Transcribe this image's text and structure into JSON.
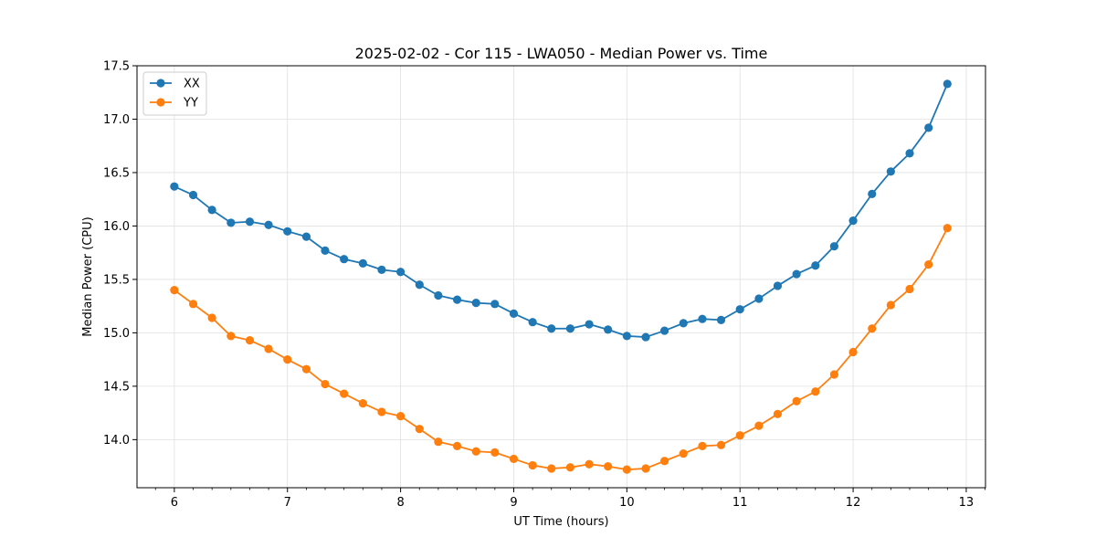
{
  "chart_data": {
    "type": "line",
    "title": "2025-02-02 - Cor 115 - LWA050 - Median Power vs. Time",
    "xlabel": "UT Time (hours)",
    "ylabel": "Median Power (CPU)",
    "xlim": [
      5.67,
      13.17
    ],
    "ylim": [
      13.55,
      17.5
    ],
    "grid": true,
    "legend_position": "top-left",
    "xticks": [
      6,
      7,
      8,
      9,
      10,
      11,
      12,
      13
    ],
    "xtick_labels": [
      "6",
      "7",
      "8",
      "9",
      "10",
      "11",
      "12",
      "13"
    ],
    "yticks": [
      14.0,
      14.5,
      15.0,
      15.5,
      16.0,
      16.5,
      17.0,
      17.5
    ],
    "ytick_labels": [
      "14.0",
      "14.5",
      "15.0",
      "15.5",
      "16.0",
      "16.5",
      "17.0",
      "17.5"
    ],
    "x": [
      6.0,
      6.167,
      6.333,
      6.5,
      6.667,
      6.833,
      7.0,
      7.167,
      7.333,
      7.5,
      7.667,
      7.833,
      8.0,
      8.167,
      8.333,
      8.5,
      8.667,
      8.833,
      9.0,
      9.167,
      9.333,
      9.5,
      9.667,
      9.833,
      10.0,
      10.167,
      10.333,
      10.5,
      10.667,
      10.833,
      11.0,
      11.167,
      11.333,
      11.5,
      11.667,
      11.833,
      12.0,
      12.167,
      12.333,
      12.5,
      12.667,
      12.833
    ],
    "series": [
      {
        "name": "XX",
        "color": "#1f77b4",
        "values": [
          16.37,
          16.29,
          16.15,
          16.03,
          16.04,
          16.01,
          15.95,
          15.9,
          15.77,
          15.69,
          15.65,
          15.59,
          15.57,
          15.45,
          15.35,
          15.31,
          15.28,
          15.27,
          15.18,
          15.1,
          15.04,
          15.04,
          15.08,
          15.03,
          14.97,
          14.96,
          15.02,
          15.09,
          15.13,
          15.12,
          15.22,
          15.32,
          15.44,
          15.55,
          15.63,
          15.81,
          16.05,
          16.3,
          16.51,
          16.68,
          16.92,
          17.33
        ]
      },
      {
        "name": "YY",
        "color": "#ff7f0e",
        "values": [
          15.4,
          15.27,
          15.14,
          14.97,
          14.93,
          14.85,
          14.75,
          14.66,
          14.52,
          14.43,
          14.34,
          14.26,
          14.22,
          14.1,
          13.98,
          13.94,
          13.89,
          13.88,
          13.82,
          13.76,
          13.73,
          13.74,
          13.77,
          13.75,
          13.72,
          13.73,
          13.8,
          13.87,
          13.94,
          13.95,
          14.04,
          14.13,
          14.24,
          14.36,
          14.45,
          14.61,
          14.82,
          15.04,
          15.26,
          15.41,
          15.64,
          15.98
        ]
      }
    ]
  }
}
